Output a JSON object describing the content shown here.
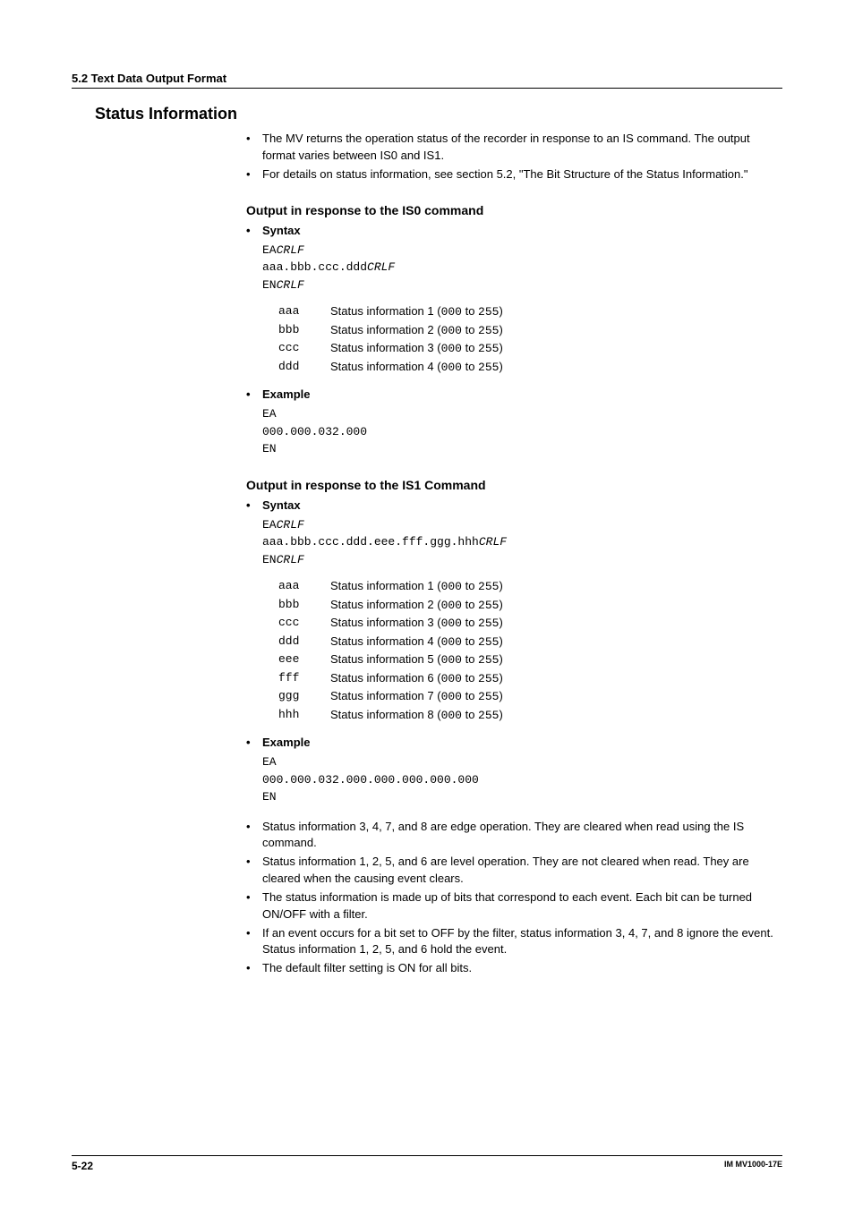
{
  "header": {
    "section": "5.2  Text Data Output Format"
  },
  "main_heading": "Status Information",
  "intro_bullets": [
    "The MV returns the operation status of the recorder in response to an IS command. The output format varies between IS0 and IS1.",
    "For details on status information, see section 5.2, \"The Bit Structure of the Status Information.\""
  ],
  "is0": {
    "title": "Output in response to the IS0 command",
    "syntax_label": "Syntax",
    "syntax_lines": [
      {
        "prefix": "EA",
        "suffix": "CRLF"
      },
      {
        "prefix": "aaa.bbb.ccc.ddd",
        "suffix": "CRLF"
      },
      {
        "prefix": "EN",
        "suffix": "CRLF"
      }
    ],
    "params": [
      {
        "key": "aaa",
        "pre": "Status information 1 (",
        "lo": "000",
        "mid": " to ",
        "hi": "255",
        "post": ")"
      },
      {
        "key": "bbb",
        "pre": "Status information 2 (",
        "lo": "000",
        "mid": " to ",
        "hi": "255",
        "post": ")"
      },
      {
        "key": "ccc",
        "pre": "Status information 3 (",
        "lo": "000",
        "mid": " to ",
        "hi": "255",
        "post": ")"
      },
      {
        "key": "ddd",
        "pre": "Status information 4 (",
        "lo": "000",
        "mid": " to ",
        "hi": "255",
        "post": ")"
      }
    ],
    "example_label": "Example",
    "example_lines": [
      "EA",
      "000.000.032.000",
      "EN"
    ]
  },
  "is1": {
    "title": "Output in response to the IS1 Command",
    "syntax_label": "Syntax",
    "syntax_lines": [
      {
        "prefix": "EA",
        "suffix": "CRLF"
      },
      {
        "prefix": "aaa.bbb.ccc.ddd.eee.fff.ggg.hhh",
        "suffix": "CRLF"
      },
      {
        "prefix": "EN",
        "suffix": "CRLF"
      }
    ],
    "params": [
      {
        "key": "aaa",
        "pre": "Status information 1 (",
        "lo": "000",
        "mid": " to ",
        "hi": "255",
        "post": ")"
      },
      {
        "key": "bbb",
        "pre": "Status information 2 (",
        "lo": "000",
        "mid": " to ",
        "hi": "255",
        "post": ")"
      },
      {
        "key": "ccc",
        "pre": "Status information 3 (",
        "lo": "000",
        "mid": " to ",
        "hi": "255",
        "post": ")"
      },
      {
        "key": "ddd",
        "pre": "Status information 4 (",
        "lo": "000",
        "mid": " to ",
        "hi": "255",
        "post": ")"
      },
      {
        "key": "eee",
        "pre": "Status information 5 (",
        "lo": "000",
        "mid": " to ",
        "hi": "255",
        "post": ")"
      },
      {
        "key": "fff",
        "pre": "Status information 6 (",
        "lo": "000",
        "mid": " to ",
        "hi": "255",
        "post": ")"
      },
      {
        "key": "ggg",
        "pre": "Status information 7 (",
        "lo": "000",
        "mid": " to ",
        "hi": "255",
        "post": ")"
      },
      {
        "key": "hhh",
        "pre": "Status information 8 (",
        "lo": "000",
        "mid": " to ",
        "hi": "255",
        "post": ")"
      }
    ],
    "example_label": "Example",
    "example_lines": [
      "EA",
      "000.000.032.000.000.000.000.000",
      "EN"
    ]
  },
  "notes": [
    "Status information 3, 4, 7, and 8 are edge operation. They are cleared when read using the IS command.",
    "Status information 1, 2, 5, and 6 are level operation. They are not cleared when read. They are cleared when the causing event clears.",
    "The status information is made up of bits that correspond to each event. Each bit can be turned ON/OFF with a filter.",
    "If an event occurs for a bit set to OFF by the filter, status information 3, 4, 7, and 8 ignore the event. Status information 1, 2, 5, and 6 hold the event.",
    "The default filter setting is ON for all bits."
  ],
  "footer": {
    "left": "5-22",
    "right": "IM MV1000-17E"
  }
}
